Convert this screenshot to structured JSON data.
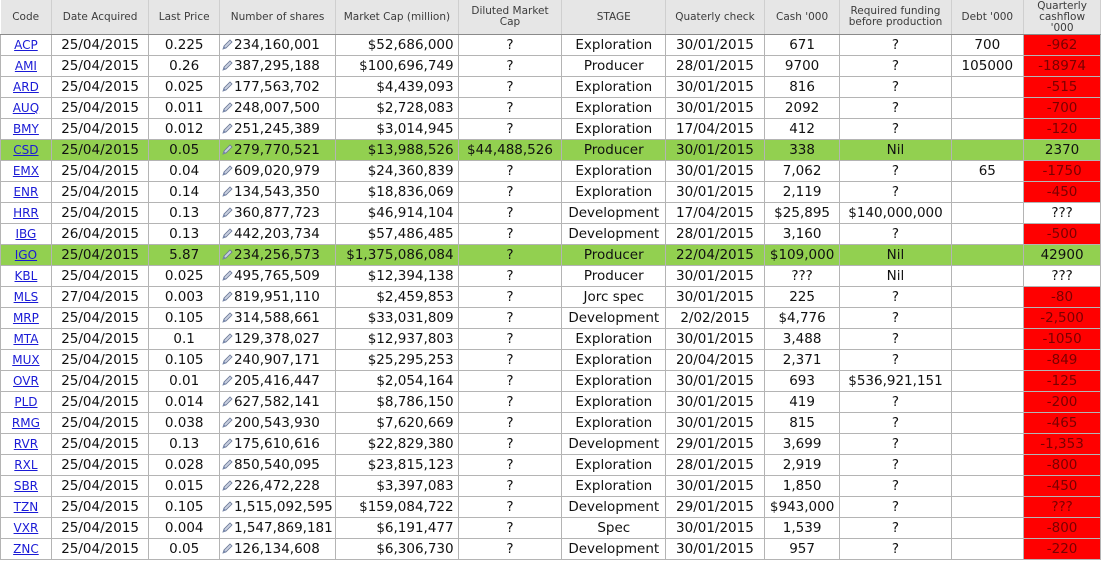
{
  "headers": {
    "code": "Code",
    "date": "Date Acquired",
    "price": "Last Price",
    "shares": "Number of shares",
    "mcap": "Market Cap (million)",
    "dmc": "Diluted Market Cap",
    "stage": "STAGE",
    "qcheck": "Quaterly check",
    "cash": "Cash '000",
    "funding": "Required funding before production",
    "debt": "Debt '000",
    "cashflow": "Quarterly cashflow '000"
  },
  "colors": {
    "highlight_row": "#92d050",
    "negative_cashflow": "#ff0000",
    "link": "#1a1ad6"
  },
  "rows": [
    {
      "code": "ACP",
      "date": "25/04/2015",
      "price": "0.225",
      "shares": "234,160,001",
      "mcap": "$52,686,000",
      "dmc": "?",
      "stage": "Exploration",
      "qcheck": "30/01/2015",
      "cash": "671",
      "funding": "?",
      "debt": "700",
      "cashflow": "-962",
      "cf": "red",
      "hl": false
    },
    {
      "code": "AMI",
      "date": "25/04/2015",
      "price": "0.26",
      "shares": "387,295,188",
      "mcap": "$100,696,749",
      "dmc": "?",
      "stage": "Producer",
      "qcheck": "28/01/2015",
      "cash": "9700",
      "funding": "?",
      "debt": "105000",
      "cashflow": "-18974",
      "cf": "red",
      "hl": false
    },
    {
      "code": "ARD",
      "date": "25/04/2015",
      "price": "0.025",
      "shares": "177,563,702",
      "mcap": "$4,439,093",
      "dmc": "?",
      "stage": "Exploration",
      "qcheck": "30/01/2015",
      "cash": "816",
      "funding": "?",
      "debt": "",
      "cashflow": "-515",
      "cf": "red",
      "hl": false
    },
    {
      "code": "AUQ",
      "date": "25/04/2015",
      "price": "0.011",
      "shares": "248,007,500",
      "mcap": "$2,728,083",
      "dmc": "?",
      "stage": "Exploration",
      "qcheck": "30/01/2015",
      "cash": "2092",
      "funding": "?",
      "debt": "",
      "cashflow": "-700",
      "cf": "red",
      "hl": false
    },
    {
      "code": "BMY",
      "date": "25/04/2015",
      "price": "0.012",
      "shares": "251,245,389",
      "mcap": "$3,014,945",
      "dmc": "?",
      "stage": "Exploration",
      "qcheck": "17/04/2015",
      "cash": "412",
      "funding": "?",
      "debt": "",
      "cashflow": "-120",
      "cf": "red",
      "hl": false
    },
    {
      "code": "CSD",
      "date": "25/04/2015",
      "price": "0.05",
      "shares": "279,770,521",
      "mcap": "$13,988,526",
      "dmc": "$44,488,526",
      "stage": "Producer",
      "qcheck": "30/01/2015",
      "cash": "338",
      "funding": "Nil",
      "debt": "",
      "cashflow": "2370",
      "cf": "green",
      "hl": true
    },
    {
      "code": "EMX",
      "date": "25/04/2015",
      "price": "0.04",
      "shares": "609,020,979",
      "mcap": "$24,360,839",
      "dmc": "?",
      "stage": "Exploration",
      "qcheck": "30/01/2015",
      "cash": "7,062",
      "funding": "?",
      "debt": "65",
      "cashflow": "-1750",
      "cf": "red",
      "hl": false
    },
    {
      "code": "ENR",
      "date": "25/04/2015",
      "price": "0.14",
      "shares": "134,543,350",
      "mcap": "$18,836,069",
      "dmc": "?",
      "stage": "Exploration",
      "qcheck": "30/01/2015",
      "cash": "2,119",
      "funding": "?",
      "debt": "",
      "cashflow": "-450",
      "cf": "red",
      "hl": false
    },
    {
      "code": "HRR",
      "date": "25/04/2015",
      "price": "0.13",
      "shares": "360,877,723",
      "mcap": "$46,914,104",
      "dmc": "?",
      "stage": "Development",
      "qcheck": "17/04/2015",
      "cash": "$25,895",
      "funding": "$140,000,000",
      "debt": "",
      "cashflow": "???",
      "cf": "white",
      "hl": false
    },
    {
      "code": "IBG",
      "date": "26/04/2015",
      "price": "0.13",
      "shares": "442,203,734",
      "mcap": "$57,486,485",
      "dmc": "?",
      "stage": "Development",
      "qcheck": "28/01/2015",
      "cash": "3,160",
      "funding": "?",
      "debt": "",
      "cashflow": "-500",
      "cf": "red",
      "hl": false
    },
    {
      "code": "IGO",
      "date": "25/04/2015",
      "price": "5.87",
      "shares": "234,256,573",
      "mcap": "$1,375,086,084",
      "dmc": "?",
      "stage": "Producer",
      "qcheck": "22/04/2015",
      "cash": "$109,000",
      "funding": "Nil",
      "debt": "",
      "cashflow": "42900",
      "cf": "green",
      "hl": true
    },
    {
      "code": "KBL",
      "date": "25/04/2015",
      "price": "0.025",
      "shares": "495,765,509",
      "mcap": "$12,394,138",
      "dmc": "?",
      "stage": "Producer",
      "qcheck": "30/01/2015",
      "cash": "???",
      "funding": "Nil",
      "debt": "",
      "cashflow": "???",
      "cf": "white",
      "hl": false
    },
    {
      "code": "MLS",
      "date": "27/04/2015",
      "price": "0.003",
      "shares": "819,951,110",
      "mcap": "$2,459,853",
      "dmc": "?",
      "stage": "Jorc spec",
      "qcheck": "30/01/2015",
      "cash": "225",
      "funding": "?",
      "debt": "",
      "cashflow": "-80",
      "cf": "red",
      "hl": false
    },
    {
      "code": "MRP",
      "date": "25/04/2015",
      "price": "0.105",
      "shares": "314,588,661",
      "mcap": "$33,031,809",
      "dmc": "?",
      "stage": "Development",
      "qcheck": "2/02/2015",
      "cash": "$4,776",
      "funding": "?",
      "debt": "",
      "cashflow": "-2,500",
      "cf": "red",
      "hl": false
    },
    {
      "code": "MTA",
      "date": "25/04/2015",
      "price": "0.1",
      "shares": "129,378,027",
      "mcap": "$12,937,803",
      "dmc": "?",
      "stage": "Exploration",
      "qcheck": "30/01/2015",
      "cash": "3,488",
      "funding": "?",
      "debt": "",
      "cashflow": "-1050",
      "cf": "red",
      "hl": false
    },
    {
      "code": "MUX",
      "date": "25/04/2015",
      "price": "0.105",
      "shares": "240,907,171",
      "mcap": "$25,295,253",
      "dmc": "?",
      "stage": "Exploration",
      "qcheck": "20/04/2015",
      "cash": "2,371",
      "funding": "?",
      "debt": "",
      "cashflow": "-849",
      "cf": "red",
      "hl": false
    },
    {
      "code": "OVR",
      "date": "25/04/2015",
      "price": "0.01",
      "shares": "205,416,447",
      "mcap": "$2,054,164",
      "dmc": "?",
      "stage": "Exploration",
      "qcheck": "30/01/2015",
      "cash": "693",
      "funding": "$536,921,151",
      "debt": "",
      "cashflow": "-125",
      "cf": "red",
      "hl": false
    },
    {
      "code": "PLD",
      "date": "25/04/2015",
      "price": "0.014",
      "shares": "627,582,141",
      "mcap": "$8,786,150",
      "dmc": "?",
      "stage": "Exploration",
      "qcheck": "30/01/2015",
      "cash": "419",
      "funding": "?",
      "debt": "",
      "cashflow": "-200",
      "cf": "red",
      "hl": false
    },
    {
      "code": "RMG",
      "date": "25/04/2015",
      "price": "0.038",
      "shares": "200,543,930",
      "mcap": "$7,620,669",
      "dmc": "?",
      "stage": "Exploration",
      "qcheck": "30/01/2015",
      "cash": "815",
      "funding": "?",
      "debt": "",
      "cashflow": "-465",
      "cf": "red",
      "hl": false
    },
    {
      "code": "RVR",
      "date": "25/04/2015",
      "price": "0.13",
      "shares": "175,610,616",
      "mcap": "$22,829,380",
      "dmc": "?",
      "stage": "Development",
      "qcheck": "29/01/2015",
      "cash": "3,699",
      "funding": "?",
      "debt": "",
      "cashflow": "-1,353",
      "cf": "red",
      "hl": false,
      "sharesGray": true
    },
    {
      "code": "RXL",
      "date": "25/04/2015",
      "price": "0.028",
      "shares": "850,540,095",
      "mcap": "$23,815,123",
      "dmc": "?",
      "stage": "Exploration",
      "qcheck": "28/01/2015",
      "cash": "2,919",
      "funding": "?",
      "debt": "",
      "cashflow": "-800",
      "cf": "red",
      "hl": false
    },
    {
      "code": "SBR",
      "date": "25/04/2015",
      "price": "0.015",
      "shares": "226,472,228",
      "mcap": "$3,397,083",
      "dmc": "?",
      "stage": "Exploration",
      "qcheck": "30/01/2015",
      "cash": "1,850",
      "funding": "?",
      "debt": "",
      "cashflow": "-450",
      "cf": "red",
      "hl": false
    },
    {
      "code": "TZN",
      "date": "25/04/2015",
      "price": "0.105",
      "shares": "1,515,092,595",
      "mcap": "$159,084,722",
      "dmc": "?",
      "stage": "Development",
      "qcheck": "29/01/2015",
      "cash": "$943,000",
      "funding": "?",
      "debt": "",
      "cashflow": "???",
      "cf": "red",
      "hl": false
    },
    {
      "code": "VXR",
      "date": "25/04/2015",
      "price": "0.004",
      "shares": "1,547,869,181",
      "mcap": "$6,191,477",
      "dmc": "?",
      "stage": "Spec",
      "qcheck": "30/01/2015",
      "cash": "1,539",
      "funding": "?",
      "debt": "",
      "cashflow": "-800",
      "cf": "red",
      "hl": false
    },
    {
      "code": "ZNC",
      "date": "25/04/2015",
      "price": "0.05",
      "shares": "126,134,608",
      "mcap": "$6,306,730",
      "dmc": "?",
      "stage": "Development",
      "qcheck": "30/01/2015",
      "cash": "957",
      "funding": "?",
      "debt": "",
      "cashflow": "-220",
      "cf": "red",
      "hl": false
    }
  ]
}
